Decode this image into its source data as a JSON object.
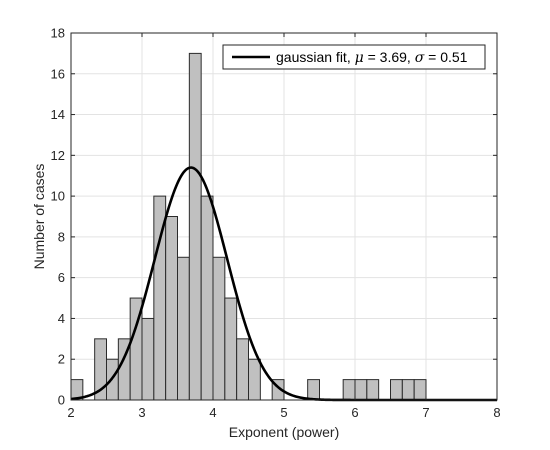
{
  "chart_data": {
    "type": "bar",
    "xlabel": "Exponent (power)",
    "ylabel": "Number of cases",
    "xlim": [
      2,
      8
    ],
    "ylim": [
      0,
      18
    ],
    "xticks": [
      2,
      3,
      4,
      5,
      6,
      7,
      8
    ],
    "yticks": [
      0,
      2,
      4,
      6,
      8,
      10,
      12,
      14,
      16,
      18
    ],
    "grid": true,
    "legend_position": "top-right",
    "histogram": {
      "bin_width": 0.1667,
      "bins": [
        {
          "start": 2.0,
          "end": 2.1667,
          "count": 1
        },
        {
          "start": 2.3333,
          "end": 2.5,
          "count": 3
        },
        {
          "start": 2.5,
          "end": 2.6667,
          "count": 2
        },
        {
          "start": 2.6667,
          "end": 2.8333,
          "count": 3
        },
        {
          "start": 2.8333,
          "end": 3.0,
          "count": 5
        },
        {
          "start": 3.0,
          "end": 3.1667,
          "count": 4
        },
        {
          "start": 3.1667,
          "end": 3.3333,
          "count": 10
        },
        {
          "start": 3.3333,
          "end": 3.5,
          "count": 9
        },
        {
          "start": 3.5,
          "end": 3.6667,
          "count": 7
        },
        {
          "start": 3.6667,
          "end": 3.8333,
          "count": 17
        },
        {
          "start": 3.8333,
          "end": 4.0,
          "count": 10
        },
        {
          "start": 4.0,
          "end": 4.1667,
          "count": 7
        },
        {
          "start": 4.1667,
          "end": 4.3333,
          "count": 5
        },
        {
          "start": 4.3333,
          "end": 4.5,
          "count": 3
        },
        {
          "start": 4.5,
          "end": 4.6667,
          "count": 2
        },
        {
          "start": 4.8333,
          "end": 5.0,
          "count": 1
        },
        {
          "start": 5.3333,
          "end": 5.5,
          "count": 1
        },
        {
          "start": 5.8333,
          "end": 6.0,
          "count": 1
        },
        {
          "start": 6.0,
          "end": 6.1667,
          "count": 1
        },
        {
          "start": 6.1667,
          "end": 6.3333,
          "count": 1
        },
        {
          "start": 6.5,
          "end": 6.6667,
          "count": 1
        },
        {
          "start": 6.6667,
          "end": 6.8333,
          "count": 1
        },
        {
          "start": 6.8333,
          "end": 7.0,
          "count": 1
        }
      ],
      "fill_color": "#c0c0c0",
      "edge_color": "#2b2b2b"
    },
    "fit": {
      "type": "gaussian",
      "mu": 3.69,
      "sigma": 0.51,
      "peak": 11.4,
      "line_color": "#000000"
    },
    "legend": {
      "prefix": "gaussian fit, ",
      "mu_symbol": "μ",
      "mu_text": " = 3.69, ",
      "sigma_symbol": "σ",
      "sigma_text": " = 0.51"
    }
  }
}
